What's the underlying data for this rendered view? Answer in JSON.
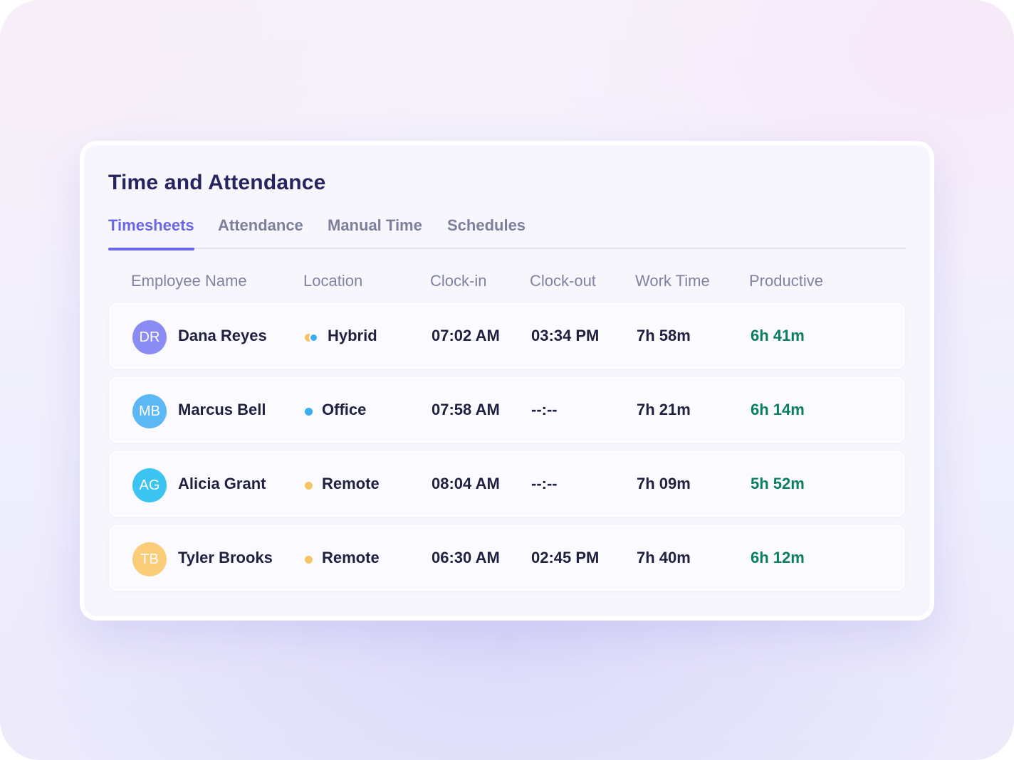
{
  "colors": {
    "accent": "#6b66e8",
    "title": "#262560",
    "productive": "#0b7d63",
    "office": "#3aaef0",
    "remote": "#f7c465"
  },
  "page": {
    "title": "Time and Attendance"
  },
  "tabs": [
    {
      "label": "Timesheets",
      "active": true
    },
    {
      "label": "Attendance",
      "active": false
    },
    {
      "label": "Manual Time",
      "active": false
    },
    {
      "label": "Schedules",
      "active": false
    }
  ],
  "table": {
    "columns": [
      "Employee Name",
      "Location",
      "Clock-in",
      "Clock-out",
      "Work Time",
      "Productive"
    ],
    "rows": [
      {
        "initials": "DR",
        "avatar_color": "#8b8cf3",
        "name": "Dana Reyes",
        "location": "Hybrid",
        "location_icon": "hybrid-dot-icon",
        "clock_in": "07:02 AM",
        "clock_out": "03:34 PM",
        "work_time": "7h 58m",
        "productive": "6h 41m"
      },
      {
        "initials": "MB",
        "avatar_color": "#5bb8f5",
        "name": "Marcus Bell",
        "location": "Office",
        "location_icon": "office-dot-icon",
        "clock_in": "07:58 AM",
        "clock_out": "--:--",
        "work_time": "7h 21m",
        "productive": "6h 14m"
      },
      {
        "initials": "AG",
        "avatar_color": "#3cc4f0",
        "name": "Alicia Grant",
        "location": "Remote",
        "location_icon": "remote-dot-icon",
        "clock_in": "08:04 AM",
        "clock_out": "--:--",
        "work_time": "7h 09m",
        "productive": "5h 52m"
      },
      {
        "initials": "TB",
        "avatar_color": "#fbcd78",
        "name": "Tyler Brooks",
        "location": "Remote",
        "location_icon": "remote-dot-icon",
        "clock_in": "06:30 AM",
        "clock_out": "02:45 PM",
        "work_time": "7h 40m",
        "productive": "6h 12m"
      }
    ]
  }
}
